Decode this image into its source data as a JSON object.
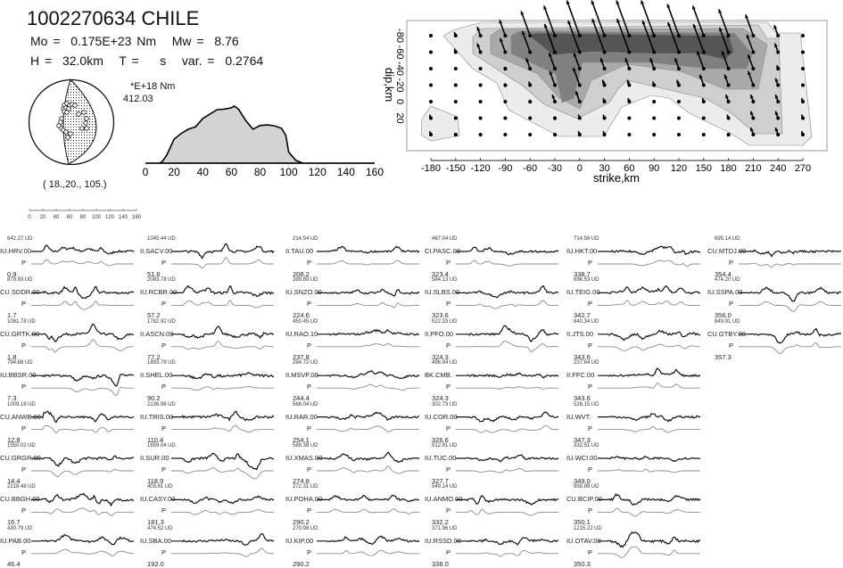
{
  "header": {
    "title": "1002270634 CHILE",
    "mo_label": "Mo =",
    "mo_value": "0.175E+23 Nm",
    "mw_label": "Mw =",
    "mw_value": "8.76",
    "h_label": "H =",
    "h_value": "32.0km",
    "t_label": "T =",
    "t_value": "s",
    "var_label": "var. =",
    "var_value": "0.2764"
  },
  "mechanism": {
    "label": "( 18.,20., 105.)"
  },
  "colors": {
    "fill": "#d3d3d3",
    "observed": "#111111",
    "synthetic": "#8c8c8c"
  },
  "chart_data": [
    {
      "type": "area",
      "title": "source time function",
      "units_label": "*E+18 Nm",
      "peak_label": "412.03",
      "xlim": [
        0,
        160
      ],
      "ylim": [
        0,
        412.03
      ],
      "xticks": [
        "0",
        "20",
        "40",
        "60",
        "80",
        "100",
        "120",
        "140",
        "160"
      ],
      "x": [
        0,
        10,
        12,
        15,
        20,
        25,
        30,
        35,
        40,
        45,
        50,
        55,
        60,
        62,
        65,
        70,
        75,
        80,
        85,
        90,
        95,
        98,
        100,
        105,
        110,
        120,
        160
      ],
      "y": [
        0,
        0,
        15,
        60,
        173,
        215,
        245,
        262,
        322,
        355,
        386,
        390,
        400,
        412,
        390,
        309,
        245,
        272,
        276,
        270,
        252,
        200,
        80,
        20,
        0,
        0,
        0
      ]
    },
    {
      "type": "heatmap",
      "title": "slip distribution",
      "xlabel": "strike,km",
      "ylabel": "dip,km",
      "xticks": [
        "-180",
        "-150",
        "-120",
        "-90",
        "-60",
        "-30",
        "0",
        "30",
        "60",
        "90",
        "120",
        "150",
        "180",
        "210",
        "240",
        "270"
      ],
      "yticks": [
        "-80",
        "-60",
        "-40",
        "-20",
        "0",
        "20"
      ],
      "strike": [
        -180,
        -150,
        -120,
        -90,
        -60,
        -30,
        0,
        30,
        60,
        90,
        120,
        150,
        180,
        210,
        240,
        270
      ],
      "dip": [
        -80,
        -60,
        -40,
        -20,
        0,
        20,
        40
      ],
      "rake_deg_from_up": -20,
      "slip_relative": [
        [
          0,
          0.1,
          0.25,
          0.45,
          0.7,
          0.85,
          1,
          1,
          1,
          1,
          0.9,
          0.85,
          0.75,
          0.6,
          0.3,
          0
        ],
        [
          0,
          0.1,
          0.25,
          0.4,
          0.6,
          0.8,
          0.9,
          0.95,
          0.95,
          0.9,
          0.85,
          0.8,
          0.7,
          0.5,
          0.25,
          0
        ],
        [
          0,
          0,
          0,
          0.05,
          0.3,
          0.45,
          0.45,
          0.3,
          0.3,
          0.3,
          0.3,
          0.5,
          0.5,
          0.4,
          0.1,
          0
        ],
        [
          0,
          0,
          0,
          0.05,
          0.1,
          0.4,
          0.5,
          0.15,
          0.15,
          0.1,
          0.15,
          0.3,
          0.3,
          0.4,
          0.2,
          0
        ],
        [
          0,
          0,
          0,
          0,
          0.05,
          0.2,
          0.3,
          0.1,
          0.1,
          0,
          0,
          0.1,
          0.2,
          0.2,
          0.2,
          0.1
        ],
        [
          0.1,
          0,
          0,
          0,
          0,
          0.05,
          0.1,
          0.1,
          0,
          0,
          0,
          0,
          0.1,
          0.2,
          0.2,
          0.1
        ],
        [
          0.1,
          0.05,
          0,
          0,
          0,
          0.05,
          0.1,
          0.1,
          0,
          0,
          0,
          0,
          0.05,
          0.2,
          0.2,
          0.1
        ]
      ]
    }
  ],
  "time_scale": {
    "ticks": [
      "0",
      "20",
      "40",
      "60",
      "80",
      "100",
      "120",
      "140",
      "160"
    ]
  },
  "phase_label": "P",
  "amp_suffix": " UD",
  "stations": [
    [
      {
        "amp": "642.27",
        "name": "IU.HRV.00",
        "az": "0.9"
      },
      {
        "amp": "879.93",
        "name": "CU.SDDR.00",
        "az": "1.7"
      },
      {
        "amp": "1081.78",
        "name": "CU.GRTK.00",
        "az": "1.8"
      },
      {
        "amp": "794.88",
        "name": "IU.BBSR.00",
        "az": "7.3"
      },
      {
        "amp": "1009.18",
        "name": "CU.ANWB.00",
        "az": "12.8"
      },
      {
        "amp": "1550.02",
        "name": "CU.GRGR.00",
        "az": "14.4"
      },
      {
        "amp": "2218.48",
        "name": "CU.BBGH.00",
        "az": "16.7"
      },
      {
        "amp": "430.79",
        "name": "IU.PAB.00",
        "az": "46.4"
      }
    ],
    [
      {
        "amp": "1045.44",
        "name": "II.SACV.00",
        "az": "51.6"
      },
      {
        "amp": "2083.78",
        "name": "IU.RCBR.00",
        "az": "57.2"
      },
      {
        "amp": "1782.92",
        "name": "II.ASCN.00",
        "az": "77.2"
      },
      {
        "amp": "1893.78",
        "name": "II.SHEL.00",
        "az": "90.2"
      },
      {
        "amp": "2136.96",
        "name": "IU.TRIS.00",
        "az": "110.4"
      },
      {
        "amp": "1659.04",
        "name": "II.SUR.00",
        "az": "118.9"
      },
      {
        "amp": "403.61",
        "name": "IU.CASY.00",
        "az": "181.3"
      },
      {
        "amp": "474.52",
        "name": "IU.SBA.00",
        "az": "192.0"
      }
    ],
    [
      {
        "amp": "214.54",
        "name": "II.TAU.00",
        "az": "208.2"
      },
      {
        "amp": "389.89",
        "name": "IU.SNZO.00",
        "az": "224.6"
      },
      {
        "amp": "450.45",
        "name": "IU.RAO.10",
        "az": "237.8"
      },
      {
        "amp": "284.72",
        "name": "II.MSVF.00",
        "az": "244.4"
      },
      {
        "amp": "568.04",
        "name": "IU.RAR.00",
        "az": "254.1"
      },
      {
        "amp": "588.38",
        "name": "IU.XMAS.00",
        "az": "274.8"
      },
      {
        "amp": "272.31",
        "name": "IU.POHA.00",
        "az": "290.2"
      },
      {
        "amp": "270.98",
        "name": "IU.KIP.00",
        "az": "290.2"
      }
    ],
    [
      {
        "amp": "467.04",
        "name": "CI.PASC.00",
        "az": "323.4"
      },
      {
        "amp": "584.13",
        "name": "IU.SLBS.00",
        "az": "323.6"
      },
      {
        "amp": "522.33",
        "name": "II.PFO.00",
        "az": "324.3"
      },
      {
        "amp": "496.94",
        "name": "BK.CMB.",
        "az": "324.3"
      },
      {
        "amp": "302.73",
        "name": "IU.COR.00",
        "az": "326.6"
      },
      {
        "amp": "512.91",
        "name": "IU.TUC.00",
        "az": "327.7"
      },
      {
        "amp": "549.14",
        "name": "IU.ANMO.00",
        "az": "332.2"
      },
      {
        "amp": "371.96",
        "name": "IU.RSSD.00",
        "az": "338.0"
      }
    ],
    [
      {
        "amp": "714.56",
        "name": "IU.HKT.00",
        "az": "338.7"
      },
      {
        "amp": "696.53",
        "name": "IU.TEIG.00",
        "az": "342.7"
      },
      {
        "amp": "840.34",
        "name": "II.JTS.00",
        "az": "343.6"
      },
      {
        "amp": "237.64",
        "name": "II.FFC.00",
        "az": "343.6"
      },
      {
        "amp": "526.15",
        "name": "IU.WVT.",
        "az": "347.3"
      },
      {
        "amp": "332.51",
        "name": "IU.WCI.00",
        "az": "349.0"
      },
      {
        "amp": "958.89",
        "name": "CU.BCIP.00",
        "az": "350.1"
      },
      {
        "amp": "1215.22",
        "name": "IU.OTAV.00",
        "az": "350.3"
      }
    ],
    [
      {
        "amp": "695.14",
        "name": "CU.MTDJ.00",
        "az": "354.4"
      },
      {
        "amp": "474.20",
        "name": "IU.SSPA.00",
        "az": "356.0"
      },
      {
        "amp": "849.91",
        "name": "CU.GTBY.00",
        "az": "357.3"
      }
    ]
  ]
}
